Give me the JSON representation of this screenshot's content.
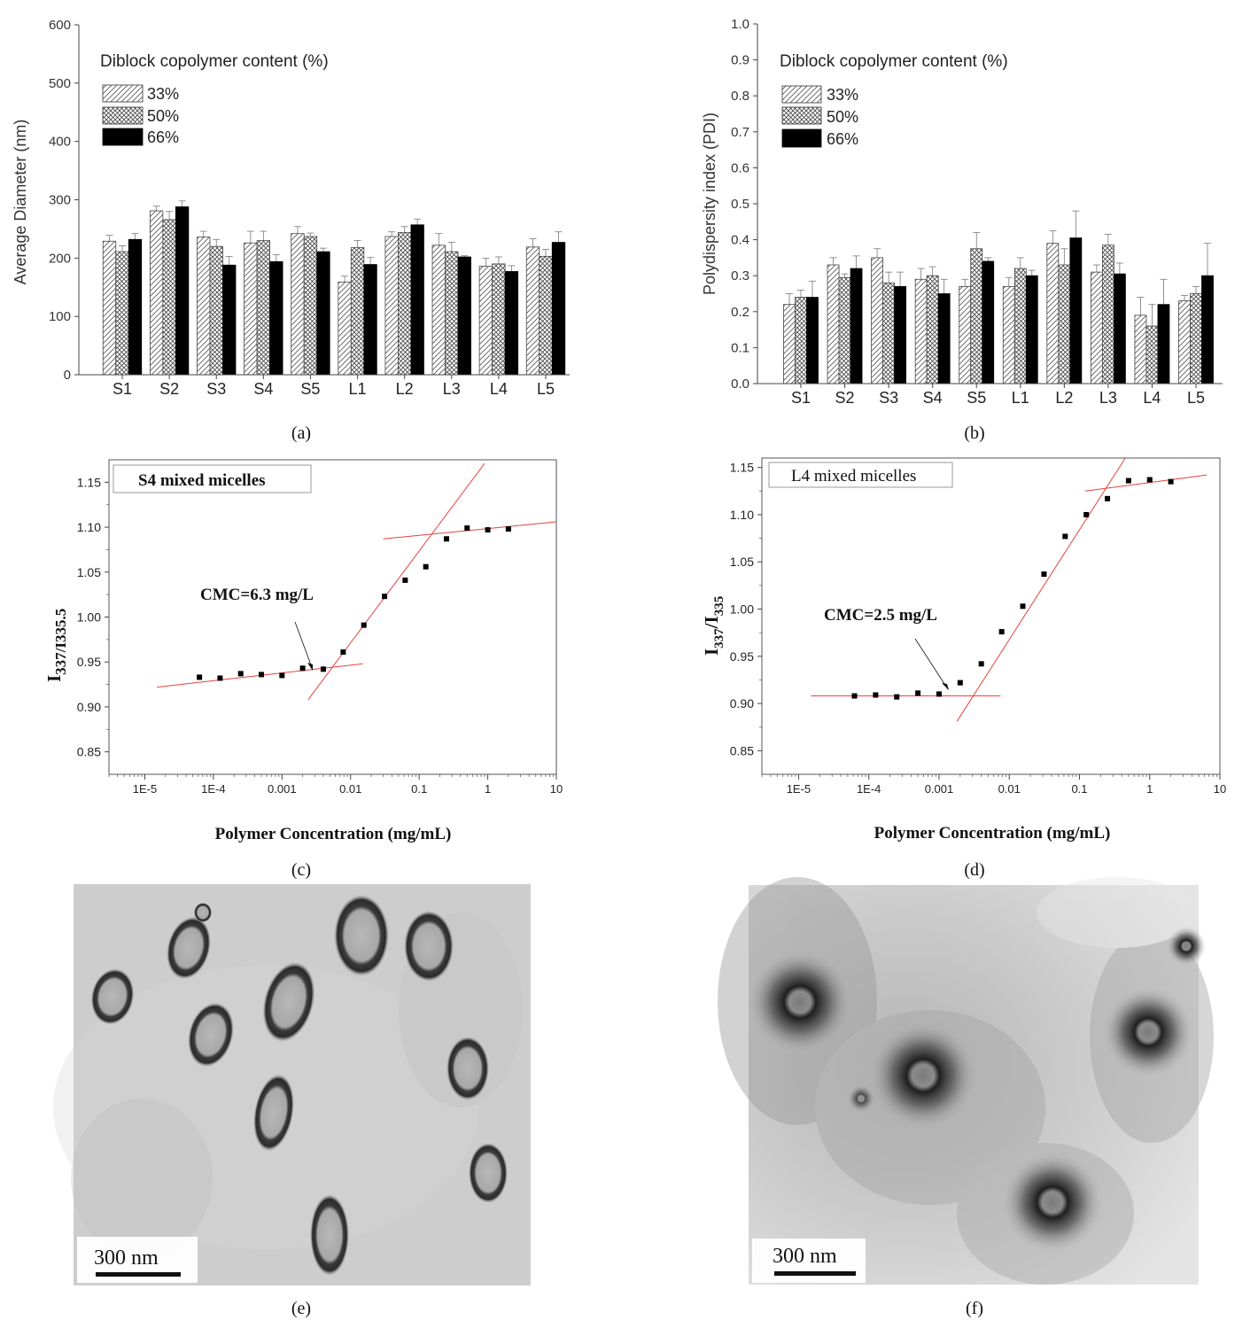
{
  "chart_data": [
    {
      "type": "bar",
      "panel": "(a)",
      "ylabel": "Average Diameter (nm)",
      "ylim": [
        0,
        600
      ],
      "yticks": [
        0,
        100,
        200,
        300,
        400,
        500,
        600
      ],
      "legend_title": "Diblock copolymer content (%)",
      "categories": [
        "S1",
        "S2",
        "S3",
        "S4",
        "S5",
        "L1",
        "L2",
        "L3",
        "L4",
        "L5"
      ],
      "series": [
        {
          "name": "33%",
          "pattern": "hatch",
          "values": [
            229,
            281,
            236,
            226,
            242,
            159,
            237,
            222,
            186,
            219
          ],
          "errors": [
            10,
            8,
            10,
            20,
            12,
            10,
            8,
            20,
            14,
            14
          ]
        },
        {
          "name": "50%",
          "pattern": "cross",
          "values": [
            211,
            266,
            220,
            230,
            237,
            218,
            244,
            211,
            190,
            203
          ],
          "errors": [
            10,
            14,
            12,
            16,
            6,
            12,
            10,
            16,
            12,
            12
          ]
        },
        {
          "name": "66%",
          "pattern": "solid",
          "values": [
            232,
            288,
            188,
            194,
            211,
            189,
            257,
            202,
            177,
            227
          ],
          "errors": [
            10,
            10,
            15,
            12,
            6,
            12,
            10,
            2,
            10,
            18
          ]
        }
      ]
    },
    {
      "type": "bar",
      "panel": "(b)",
      "ylabel": "Polydispersity index (PDI)",
      "ylim": [
        0,
        1.0
      ],
      "yticks": [
        "0.0",
        "0.1",
        "0.2",
        "0.3",
        "0.4",
        "0.5",
        "0.6",
        "0.7",
        "0.8",
        "0.9",
        "1.0"
      ],
      "legend_title": "Diblock copolymer content (%)",
      "categories": [
        "S1",
        "S2",
        "S3",
        "S4",
        "S5",
        "L1",
        "L2",
        "L3",
        "L4",
        "L5"
      ],
      "series": [
        {
          "name": "33%",
          "pattern": "hatch",
          "values": [
            0.22,
            0.33,
            0.35,
            0.29,
            0.27,
            0.27,
            0.39,
            0.31,
            0.19,
            0.23
          ],
          "errors": [
            0.03,
            0.02,
            0.025,
            0.03,
            0.02,
            0.025,
            0.035,
            0.02,
            0.05,
            0.015
          ]
        },
        {
          "name": "50%",
          "pattern": "cross",
          "values": [
            0.24,
            0.295,
            0.28,
            0.3,
            0.375,
            0.32,
            0.33,
            0.385,
            0.16,
            0.25
          ],
          "errors": [
            0.02,
            0.01,
            0.03,
            0.025,
            0.045,
            0.03,
            0.045,
            0.03,
            0.06,
            0.02
          ]
        },
        {
          "name": "66%",
          "pattern": "solid",
          "values": [
            0.24,
            0.32,
            0.27,
            0.25,
            0.34,
            0.3,
            0.405,
            0.305,
            0.22,
            0.3
          ],
          "errors": [
            0.045,
            0.035,
            0.04,
            0.04,
            0.01,
            0.015,
            0.075,
            0.03,
            0.07,
            0.09
          ]
        }
      ]
    },
    {
      "type": "scatter",
      "panel": "(c)",
      "xscale": "log",
      "xlabel": "Polymer Concentration (mg/mL)",
      "ylabel": "I337/I335.5",
      "ylabel_main": "I",
      "ylabel_sub": "337/I335.5",
      "xlim": [
        3e-06,
        10
      ],
      "ylim": [
        0.825,
        1.175
      ],
      "xticks": [
        1e-05,
        0.0001,
        0.001,
        0.01,
        0.1,
        1,
        10
      ],
      "xtick_labels": [
        "1E-5",
        "1E-4",
        "0.001",
        "0.01",
        "0.1",
        "1",
        "10"
      ],
      "yticks": [
        "0.85",
        "0.90",
        "0.95",
        "1.00",
        "1.05",
        "1.10",
        "1.15"
      ],
      "title": "S4 mixed micelles",
      "annotation": "CMC=6.3 mg/L",
      "points": [
        [
          6.25e-05,
          0.933
        ],
        [
          0.000125,
          0.932
        ],
        [
          0.00025,
          0.937
        ],
        [
          0.0005,
          0.936
        ],
        [
          0.001,
          0.935
        ],
        [
          0.002,
          0.943
        ],
        [
          0.004,
          0.942
        ],
        [
          0.0078,
          0.961
        ],
        [
          0.0156,
          0.991
        ],
        [
          0.03125,
          1.023
        ],
        [
          0.0625,
          1.041
        ],
        [
          0.125,
          1.056
        ],
        [
          0.25,
          1.087
        ],
        [
          0.5,
          1.099
        ],
        [
          1,
          1.097
        ],
        [
          2,
          1.098
        ]
      ],
      "fit_lines": [
        {
          "x": [
            1.5e-05,
            0.015
          ],
          "y": [
            0.922,
            0.948
          ]
        },
        {
          "x": [
            0.0024,
            0.9
          ],
          "y": [
            0.908,
            1.171
          ]
        },
        {
          "x": [
            0.03,
            10
          ],
          "y": [
            1.087,
            1.106
          ]
        }
      ]
    },
    {
      "type": "scatter",
      "panel": "(d)",
      "xscale": "log",
      "xlabel": "Polymer Concentration (mg/mL)",
      "ylabel": "I337/I335",
      "ylabel_main": "I",
      "ylabel_sub1": "337",
      "ylabel_mid": "/I",
      "ylabel_sub2": "335",
      "xlim": [
        3e-06,
        10
      ],
      "ylim": [
        0.825,
        1.16
      ],
      "xticks": [
        1e-05,
        0.0001,
        0.001,
        0.01,
        0.1,
        1,
        10
      ],
      "xtick_labels": [
        "1E-5",
        "1E-4",
        "0.001",
        "0.01",
        "0.1",
        "1",
        "10"
      ],
      "yticks": [
        "0.85",
        "0.90",
        "0.95",
        "1.00",
        "1.05",
        "1.10",
        "1.15"
      ],
      "title": "L4 mixed micelles",
      "annotation": "CMC=2.5 mg/L",
      "points": [
        [
          6.25e-05,
          0.908
        ],
        [
          0.000125,
          0.909
        ],
        [
          0.00025,
          0.907
        ],
        [
          0.0005,
          0.911
        ],
        [
          0.001,
          0.91
        ],
        [
          0.002,
          0.922
        ],
        [
          0.004,
          0.942
        ],
        [
          0.0078,
          0.976
        ],
        [
          0.0156,
          1.003
        ],
        [
          0.03125,
          1.037
        ],
        [
          0.0625,
          1.077
        ],
        [
          0.125,
          1.1
        ],
        [
          0.25,
          1.117
        ],
        [
          0.5,
          1.136
        ],
        [
          1,
          1.137
        ],
        [
          2,
          1.135
        ]
      ],
      "fit_lines": [
        {
          "x": [
            1.5e-05,
            0.0075
          ],
          "y": [
            0.908,
            0.908
          ]
        },
        {
          "x": [
            0.0018,
            0.45
          ],
          "y": [
            0.881,
            1.16
          ]
        },
        {
          "x": [
            0.12,
            6.5
          ],
          "y": [
            1.125,
            1.142
          ]
        }
      ]
    }
  ],
  "panel_labels": {
    "a": "(a)",
    "b": "(b)",
    "c": "(c)",
    "d": "(d)",
    "e": "(e)",
    "f": "(f)"
  },
  "micrographs": {
    "e": {
      "scale_bar": "300 nm"
    },
    "f": {
      "scale_bar": "300 nm"
    }
  }
}
